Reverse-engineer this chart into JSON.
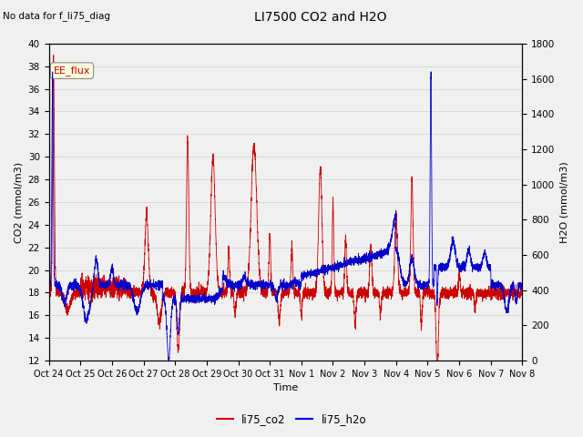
{
  "title": "LI7500 CO2 and H2O",
  "subtitle": "No data for f_li75_diag",
  "xlabel": "Time",
  "ylabel_left": "CO2 (mmol/m3)",
  "ylabel_right": "H2O (mmol/m3)",
  "ylim_left": [
    12,
    40
  ],
  "ylim_right": [
    0,
    1800
  ],
  "yticks_left": [
    12,
    14,
    16,
    18,
    20,
    22,
    24,
    26,
    28,
    30,
    32,
    34,
    36,
    38,
    40
  ],
  "yticks_right": [
    0,
    200,
    400,
    600,
    800,
    1000,
    1200,
    1400,
    1600,
    1800
  ],
  "xtick_labels": [
    "Oct 24",
    "Oct 25",
    "Oct 26",
    "Oct 27",
    "Oct 28",
    "Oct 29",
    "Oct 30",
    "Oct 31",
    "Nov 1",
    "Nov 2",
    "Nov 3",
    "Nov 4",
    "Nov 5",
    "Nov 6",
    "Nov 7",
    "Nov 8"
  ],
  "co2_color": "#cc0000",
  "h2o_color": "#0000cc",
  "legend_label_co2": "li75_co2",
  "legend_label_h2o": "li75_h2o",
  "annotation_label": "EE_flux",
  "grid_color": "#d0d0d0",
  "background_color": "#f0f0f0",
  "plot_bg_color": "#f0f0f0",
  "n_points": 5000
}
